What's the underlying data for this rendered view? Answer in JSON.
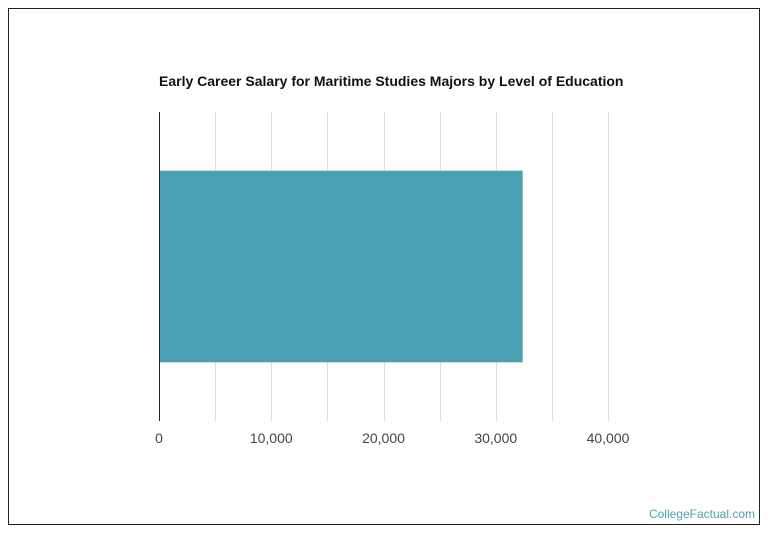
{
  "chart_data": {
    "type": "bar",
    "orientation": "horizontal",
    "title": "Early Career Salary for Maritime Studies Majors by Level of Education",
    "categories": [
      ""
    ],
    "values": [
      32400
    ],
    "xlim": [
      0,
      40000
    ],
    "major_ticks": [
      0,
      10000,
      20000,
      30000,
      40000
    ],
    "minor_gridlines": [
      5000,
      15000,
      25000,
      35000
    ],
    "tick_labels": [
      "0",
      "10,000",
      "20,000",
      "30,000",
      "40,000"
    ],
    "grid": true,
    "legend": "none",
    "bar_color": "#4aa0b3",
    "xlabel": "",
    "ylabel": ""
  },
  "credit": "CollegeFactual.com"
}
